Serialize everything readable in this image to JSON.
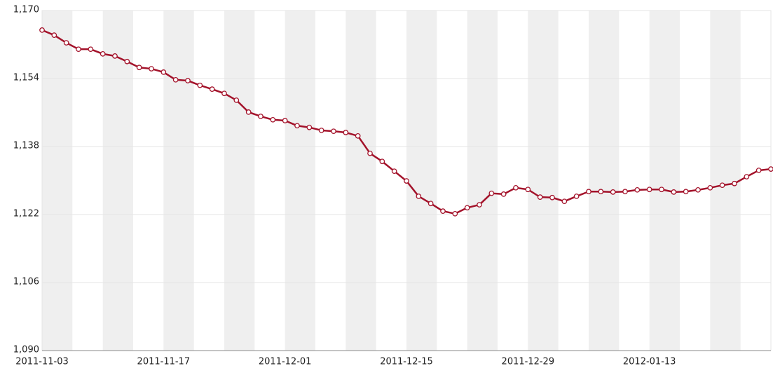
{
  "chart_data": {
    "type": "line",
    "categories": [
      "2011-11-03",
      null,
      null,
      null,
      null,
      null,
      null,
      null,
      null,
      null,
      "2011-11-17",
      null,
      null,
      null,
      null,
      null,
      null,
      null,
      null,
      null,
      "2011-12-01",
      null,
      null,
      null,
      null,
      null,
      null,
      null,
      null,
      null,
      "2011-12-15",
      null,
      null,
      null,
      null,
      null,
      null,
      null,
      null,
      null,
      "2011-12-29",
      null,
      null,
      null,
      null,
      null,
      null,
      null,
      null,
      null,
      "2012-01-13",
      null,
      null,
      null,
      null,
      null,
      null,
      null,
      null,
      null,
      null
    ],
    "series": [
      {
        "color": "#a3122a",
        "values": [
          1165.4,
          1164.2,
          1162.4,
          1160.9,
          1160.9,
          1159.8,
          1159.3,
          1158.0,
          1156.6,
          1156.3,
          1155.5,
          1153.7,
          1153.5,
          1152.4,
          1151.5,
          1150.5,
          1148.9,
          1146.1,
          1145.1,
          1144.3,
          1144.1,
          1142.9,
          1142.5,
          1141.8,
          1141.6,
          1141.3,
          1140.5,
          1136.4,
          1134.5,
          1132.2,
          1129.9,
          1126.3,
          1124.6,
          1122.8,
          1122.2,
          1123.6,
          1124.3,
          1127.0,
          1126.8,
          1128.3,
          1127.9,
          1126.1,
          1126.0,
          1125.1,
          1126.3,
          1127.4,
          1127.4,
          1127.3,
          1127.4,
          1127.8,
          1127.9,
          1127.9,
          1127.3,
          1127.4,
          1127.8,
          1128.3,
          1128.9,
          1129.3,
          1130.9,
          1132.4,
          1132.7
        ]
      }
    ],
    "ylim": [
      1090,
      1170
    ],
    "yticks": [
      {
        "value": 1090,
        "label": "1,090"
      },
      {
        "value": 1106,
        "label": "1,106"
      },
      {
        "value": 1122,
        "label": "1,122"
      },
      {
        "value": 1138,
        "label": "1,138"
      },
      {
        "value": 1154,
        "label": "1,154"
      },
      {
        "value": 1170,
        "label": "1,170"
      }
    ],
    "grid": true
  }
}
